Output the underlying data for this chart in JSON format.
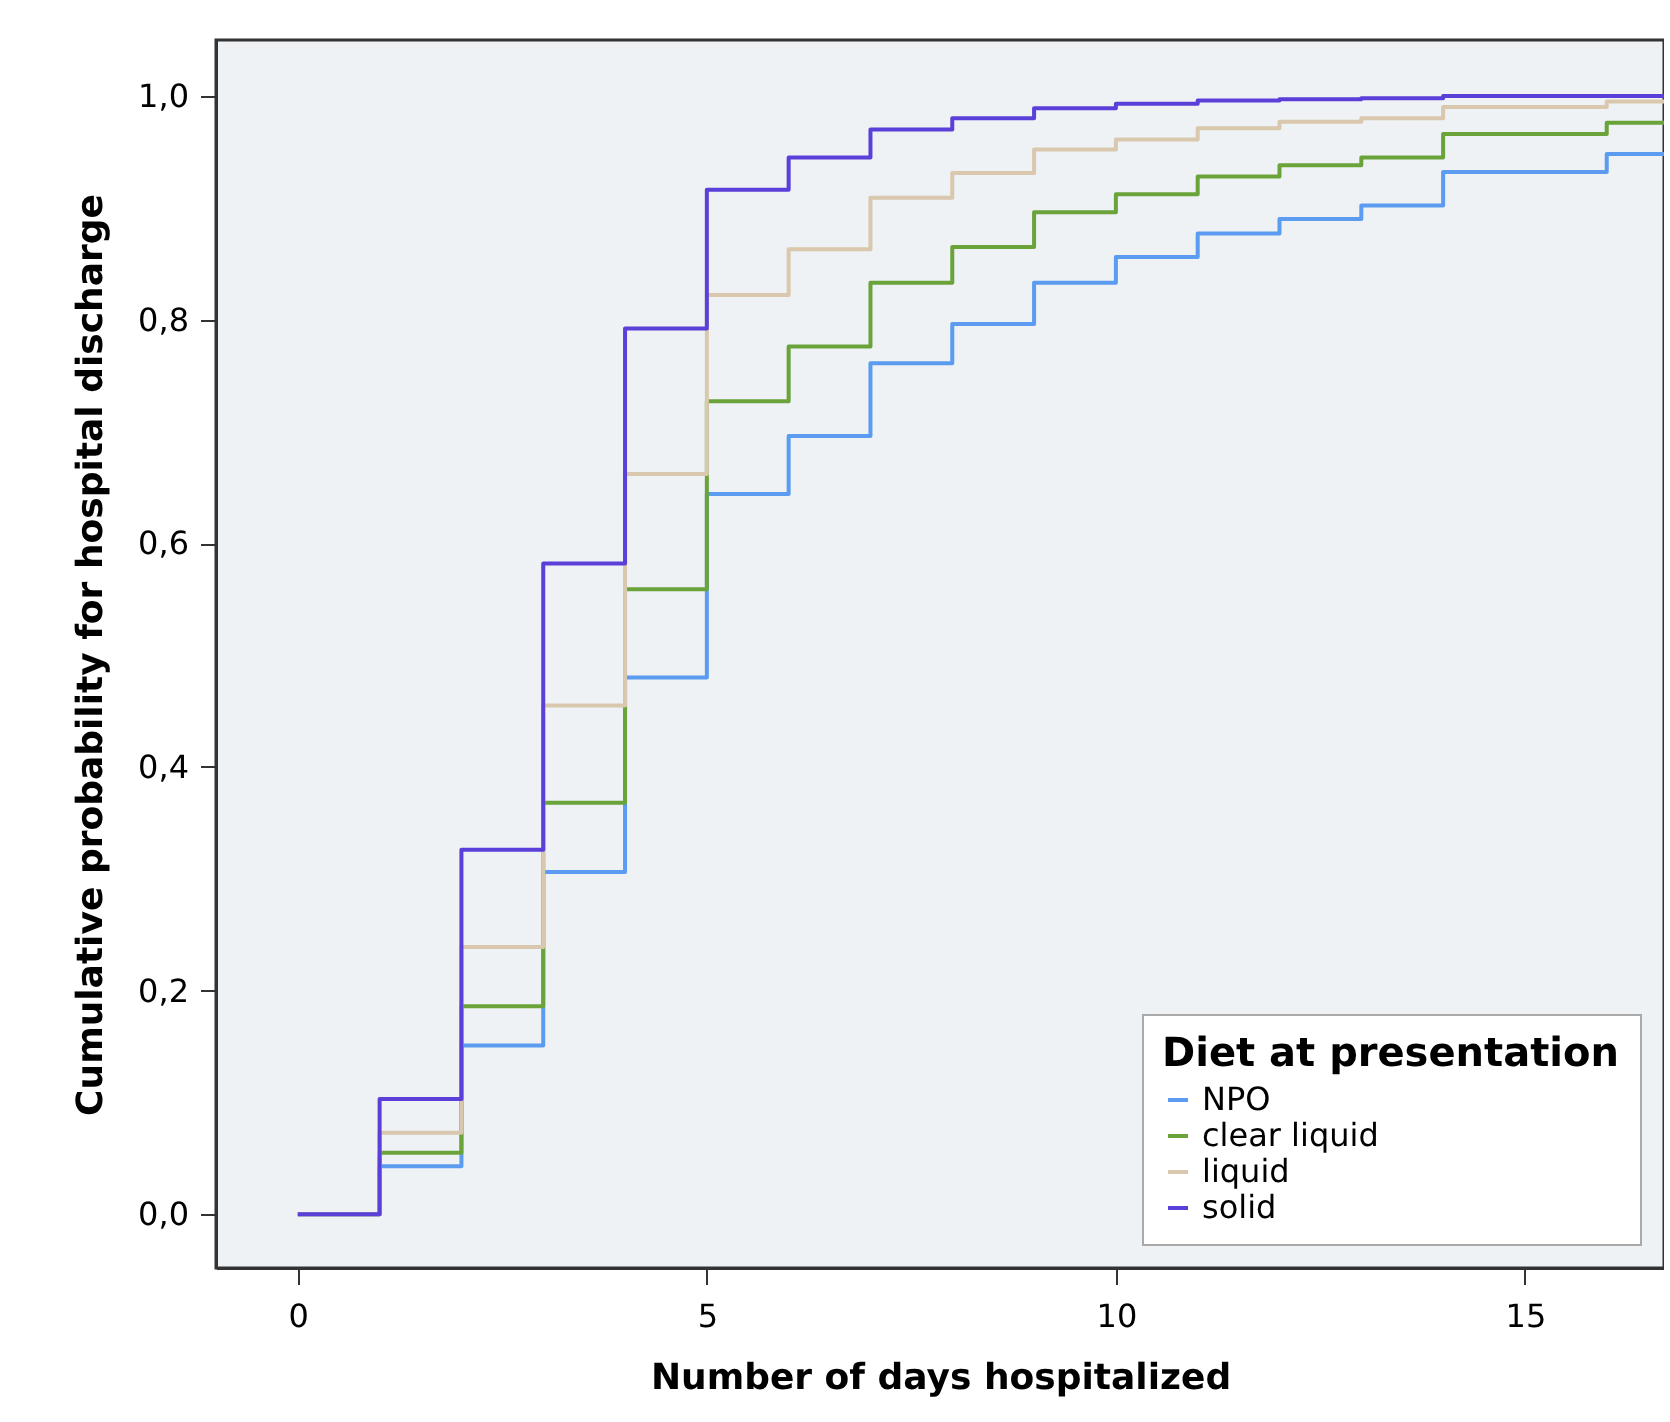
{
  "chart_data": {
    "type": "step",
    "xlabel": "Number of days hospitalized",
    "ylabel": "Cumulative probability for hospital discharge",
    "legend_title": "Diet at presentation",
    "legend": "bottom right",
    "x": [
      0,
      1,
      2,
      3,
      4,
      5,
      6,
      7,
      8,
      9,
      10,
      11,
      12,
      13,
      14,
      15,
      16,
      16.7
    ],
    "xlim": [
      -1,
      16.7
    ],
    "xticks": [
      0,
      5,
      10,
      15
    ],
    "ylim": [
      -0.048,
      1.05
    ],
    "yticks": [
      {
        "value": 0,
        "label": "0,0"
      },
      {
        "value": 0.2,
        "label": "0,2"
      },
      {
        "value": 0.4,
        "label": "0,4"
      },
      {
        "value": 0.6,
        "label": "0,6"
      },
      {
        "value": 0.8,
        "label": "0,8"
      },
      {
        "value": 1,
        "label": "1,0"
      }
    ],
    "series": [
      {
        "name": "NPO",
        "color": "#5b9cf0",
        "values": [
          0,
          0.043,
          0.151,
          0.306,
          0.48,
          0.644,
          0.696,
          0.761,
          0.796,
          0.833,
          0.856,
          0.877,
          0.89,
          0.902,
          0.932,
          0.932,
          0.948,
          0.948
        ]
      },
      {
        "name": "clear liquid",
        "color": "#6aa33a",
        "values": [
          0,
          0.055,
          0.186,
          0.368,
          0.559,
          0.727,
          0.776,
          0.833,
          0.865,
          0.896,
          0.912,
          0.928,
          0.938,
          0.945,
          0.966,
          0.966,
          0.976,
          0.976
        ]
      },
      {
        "name": "liquid",
        "color": "#d9c8ad",
        "values": [
          0,
          0.073,
          0.239,
          0.455,
          0.662,
          0.822,
          0.863,
          0.909,
          0.931,
          0.952,
          0.961,
          0.971,
          0.977,
          0.98,
          0.99,
          0.99,
          0.995,
          0.995
        ]
      },
      {
        "name": "solid",
        "color": "#5a3fd8",
        "values": [
          0,
          0.103,
          0.326,
          0.582,
          0.792,
          0.916,
          0.945,
          0.97,
          0.98,
          0.989,
          0.993,
          0.996,
          0.997,
          0.998,
          1,
          1,
          1,
          1
        ]
      }
    ]
  }
}
